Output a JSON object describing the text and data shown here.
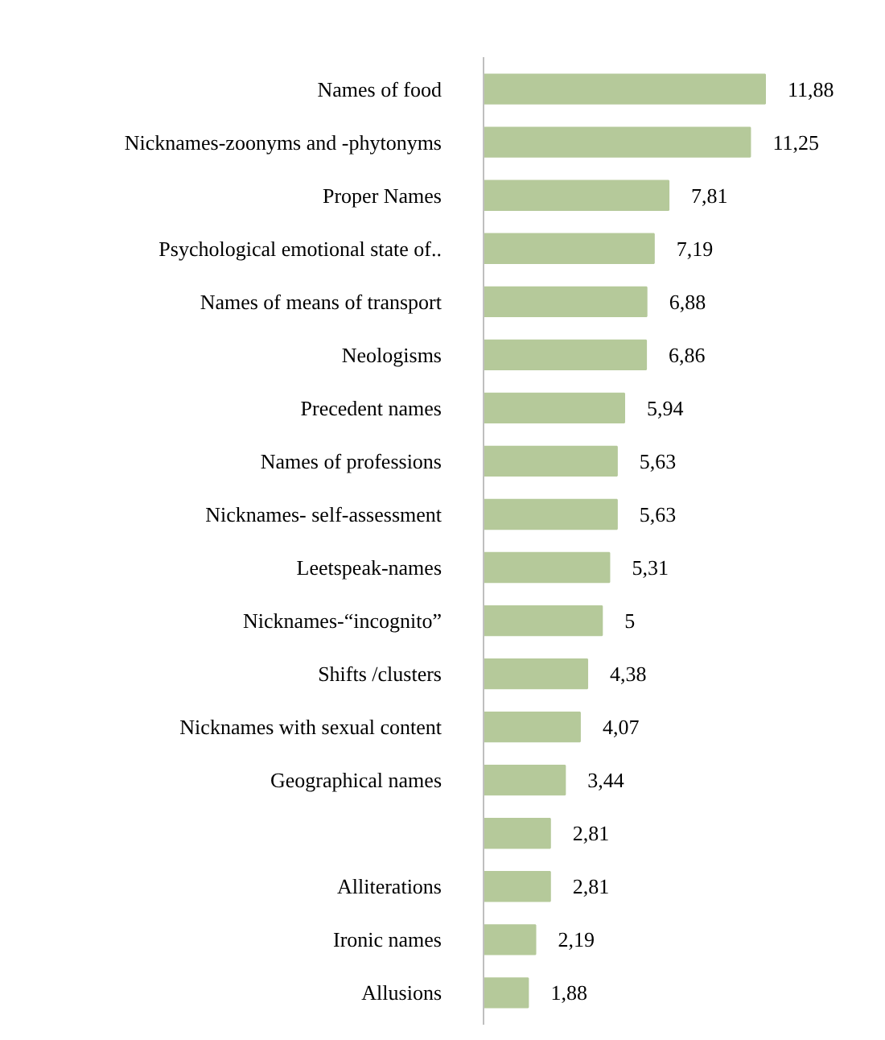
{
  "chart_data": {
    "type": "bar",
    "orientation": "horizontal",
    "color": "#b5c99a",
    "categories": [
      "Names of food",
      "Nicknames-zoonyms and -phytonyms",
      "Proper Names",
      "Psychological emotional state of..",
      "Names of means of transport",
      "Neologisms",
      "Precedent names",
      "Names of professions",
      "Nicknames- self-assessment",
      "Leetspeak-names",
      "Nicknames-“incognito”",
      "Shifts /clusters",
      "Nicknames with sexual content",
      "Geographical names",
      null,
      "Alliterations",
      "Ironic names",
      "Allusions"
    ],
    "values": [
      11.88,
      11.25,
      7.81,
      7.19,
      6.88,
      6.86,
      5.94,
      5.63,
      5.63,
      5.31,
      5,
      4.38,
      4.07,
      3.44,
      2.81,
      2.81,
      2.19,
      1.88
    ],
    "value_labels": [
      "11,88",
      "11,25",
      "7,81",
      "7,19",
      "6,88",
      "6,86",
      "5,94",
      "5,63",
      "5,63",
      "5,31",
      "5",
      "4,38",
      "4,07",
      "3,44",
      "2,81",
      "2,81",
      "2,19",
      "1,88"
    ],
    "tick_labels": "y"
  }
}
